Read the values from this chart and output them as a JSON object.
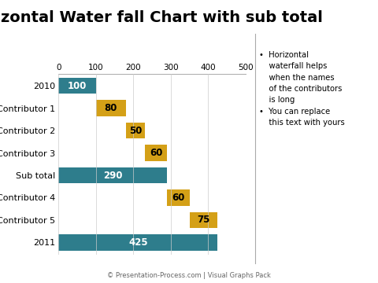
{
  "title": "Horizontal Water fall Chart with sub total",
  "categories": [
    "2010",
    "Contributor 1",
    "Contributor 2",
    "Contributor 3",
    "Sub total",
    "Contributor 4",
    "Contributor 5",
    "2011"
  ],
  "values": [
    100,
    80,
    50,
    60,
    290,
    60,
    75,
    425
  ],
  "starts": [
    0,
    100,
    180,
    230,
    0,
    290,
    350,
    0
  ],
  "colors": [
    "#2E7D8C",
    "#D4A017",
    "#D4A017",
    "#D4A017",
    "#2E7D8C",
    "#D4A017",
    "#D4A017",
    "#2E7D8C"
  ],
  "text_colors": [
    "#ffffff",
    "#000000",
    "#000000",
    "#000000",
    "#ffffff",
    "#000000",
    "#000000",
    "#ffffff"
  ],
  "xlim": [
    0,
    500
  ],
  "xticks": [
    0,
    100,
    200,
    300,
    400,
    500
  ],
  "bg_color": "#ffffff",
  "bullet1_title": "Horizontal",
  "bullet1_lines": [
    "waterfall helps",
    "when the names",
    "of the contributors",
    "is long"
  ],
  "bullet2_title": "You can replace",
  "bullet2_lines": [
    "this text with yours"
  ],
  "footer": "© Presentation-Process.com | Visual Graphs Pack",
  "title_fontsize": 14,
  "label_fontsize": 8.5,
  "bar_height": 0.72
}
